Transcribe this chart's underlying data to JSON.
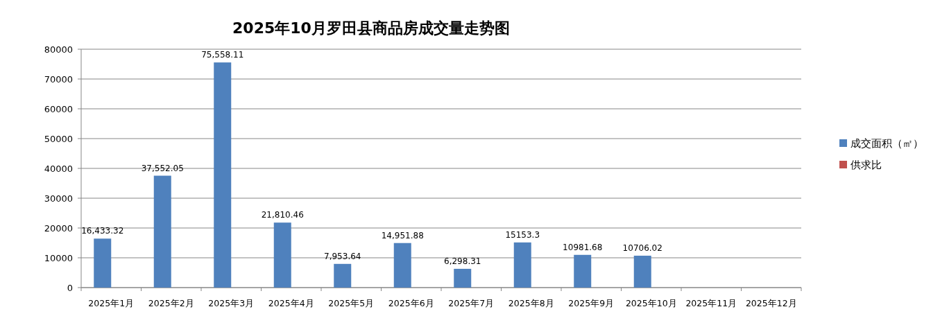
{
  "chart_data": {
    "type": "bar",
    "title": "2025年10月罗田县商品房成交量走势图",
    "categories": [
      "2025年1月",
      "2025年2月",
      "2025年3月",
      "2025年4月",
      "2025年5月",
      "2025年6月",
      "2025年7月",
      "2025年8月",
      "2025年9月",
      "2025年10月",
      "2025年11月",
      "2025年12月"
    ],
    "series": [
      {
        "name": "成交面积（㎡）",
        "color": "#4f81bd",
        "values": [
          16433.32,
          37552.05,
          75558.11,
          21810.46,
          7953.64,
          14951.88,
          6298.31,
          15153.3,
          10981.68,
          10706.02,
          null,
          null
        ],
        "value_labels": [
          "16,433.32",
          "37,552.05",
          "75,558.11",
          "21,810.46",
          "7,953.64",
          "14,951.88",
          "6,298.31",
          "15153.3",
          "10981.68",
          "10706.02",
          null,
          null
        ]
      },
      {
        "name": "供求比",
        "color": "#c0504d",
        "values": [
          null,
          null,
          null,
          null,
          null,
          null,
          null,
          null,
          null,
          null,
          null,
          null
        ]
      }
    ],
    "ylim": [
      0,
      80000
    ],
    "yticks": [
      0,
      10000,
      20000,
      30000,
      40000,
      50000,
      60000,
      70000,
      80000
    ],
    "grid": "y",
    "legend": "right"
  }
}
